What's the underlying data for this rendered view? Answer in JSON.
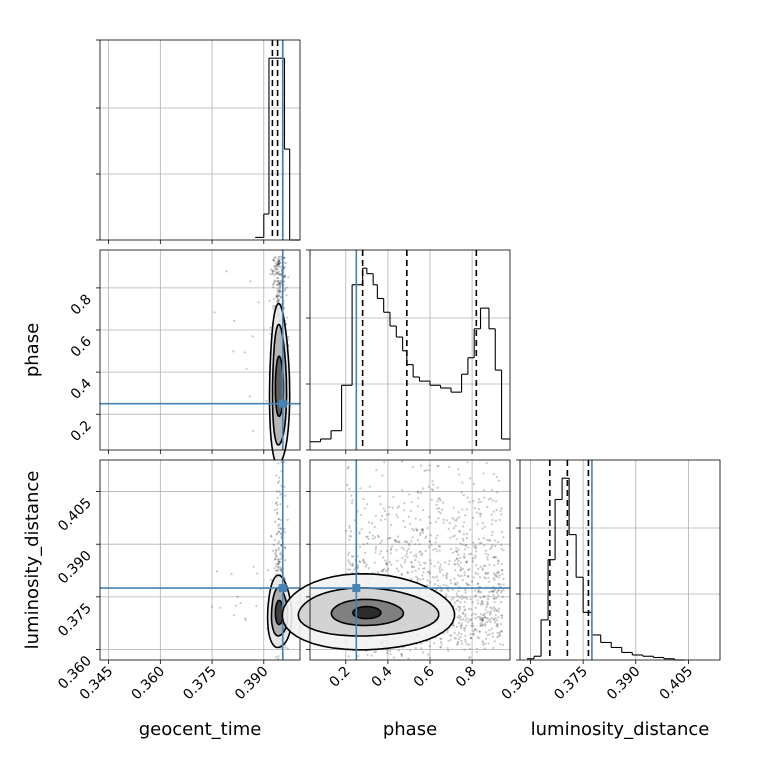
{
  "chart_data": {
    "type": "corner",
    "parameters": [
      "geocent_time",
      "phase",
      "luminosity_distance"
    ],
    "axis_labels": {
      "geocent_time": "geocent_time",
      "phase": "phase",
      "luminosity_distance": "luminosity_distance"
    },
    "ranges": {
      "geocent_time": [
        0.3425,
        0.4005
      ],
      "phase": [
        0.03,
        0.98
      ],
      "luminosity_distance": [
        0.357,
        0.414
      ]
    },
    "ticks": {
      "geocent_time": [
        0.345,
        0.36,
        0.375,
        0.39
      ],
      "phase": [
        0.2,
        0.4,
        0.6,
        0.8
      ],
      "luminosity_distance": [
        0.36,
        0.375,
        0.39,
        0.405
      ]
    },
    "tick_labels": {
      "geocent_time": [
        "0.345",
        "0.360",
        "0.375",
        "0.390"
      ],
      "phase": [
        "0.2",
        "0.4",
        "0.6",
        "0.8"
      ],
      "luminosity_distance": [
        "0.360",
        "0.375",
        "0.390",
        "0.405"
      ]
    },
    "injection": {
      "geocent_time": 0.3955,
      "phase": 0.25,
      "luminosity_distance": 0.3775
    },
    "quantiles": {
      "geocent_time": [
        0.3925,
        0.394,
        0.3955
      ],
      "phase": [
        0.28,
        0.49,
        0.82
      ],
      "luminosity_distance": [
        0.3655,
        0.3705,
        0.3765
      ]
    },
    "histograms": {
      "geocent_time": {
        "edges": [
          0.3875,
          0.39,
          0.3915,
          0.393,
          0.3945,
          0.396,
          0.3975,
          0.399,
          0.4005
        ],
        "counts": [
          2,
          20,
          140,
          140,
          140,
          70,
          0,
          0
        ]
      },
      "phase": {
        "edges": [
          0.03,
          0.08,
          0.13,
          0.18,
          0.23,
          0.25,
          0.28,
          0.3,
          0.33,
          0.35,
          0.38,
          0.41,
          0.44,
          0.47,
          0.49,
          0.52,
          0.55,
          0.6,
          0.65,
          0.7,
          0.75,
          0.78,
          0.81,
          0.84,
          0.88,
          0.91,
          0.94,
          0.98
        ],
        "counts": [
          6,
          8,
          14,
          47,
          120,
          120,
          132,
          128,
          120,
          110,
          100,
          90,
          82,
          72,
          62,
          53,
          50,
          47,
          45,
          42,
          55,
          67,
          88,
          103,
          88,
          58,
          8
        ]
      },
      "luminosity_distance": {
        "edges": [
          0.359,
          0.361,
          0.363,
          0.365,
          0.367,
          0.369,
          0.371,
          0.373,
          0.375,
          0.3775,
          0.38,
          0.383,
          0.386,
          0.389,
          0.392,
          0.395,
          0.398,
          0.401,
          0.404
        ],
        "counts": [
          1,
          3,
          32,
          80,
          128,
          145,
          100,
          66,
          38,
          20,
          14,
          10,
          6,
          4,
          3,
          2,
          1,
          0
        ]
      }
    },
    "contour_centers": {
      "geocent_time__phase": [
        0.3945,
        0.33
      ],
      "geocent_time__luminosity_distance": [
        0.3945,
        0.3705
      ],
      "phase__luminosity_distance": [
        0.3,
        0.3705
      ]
    }
  }
}
